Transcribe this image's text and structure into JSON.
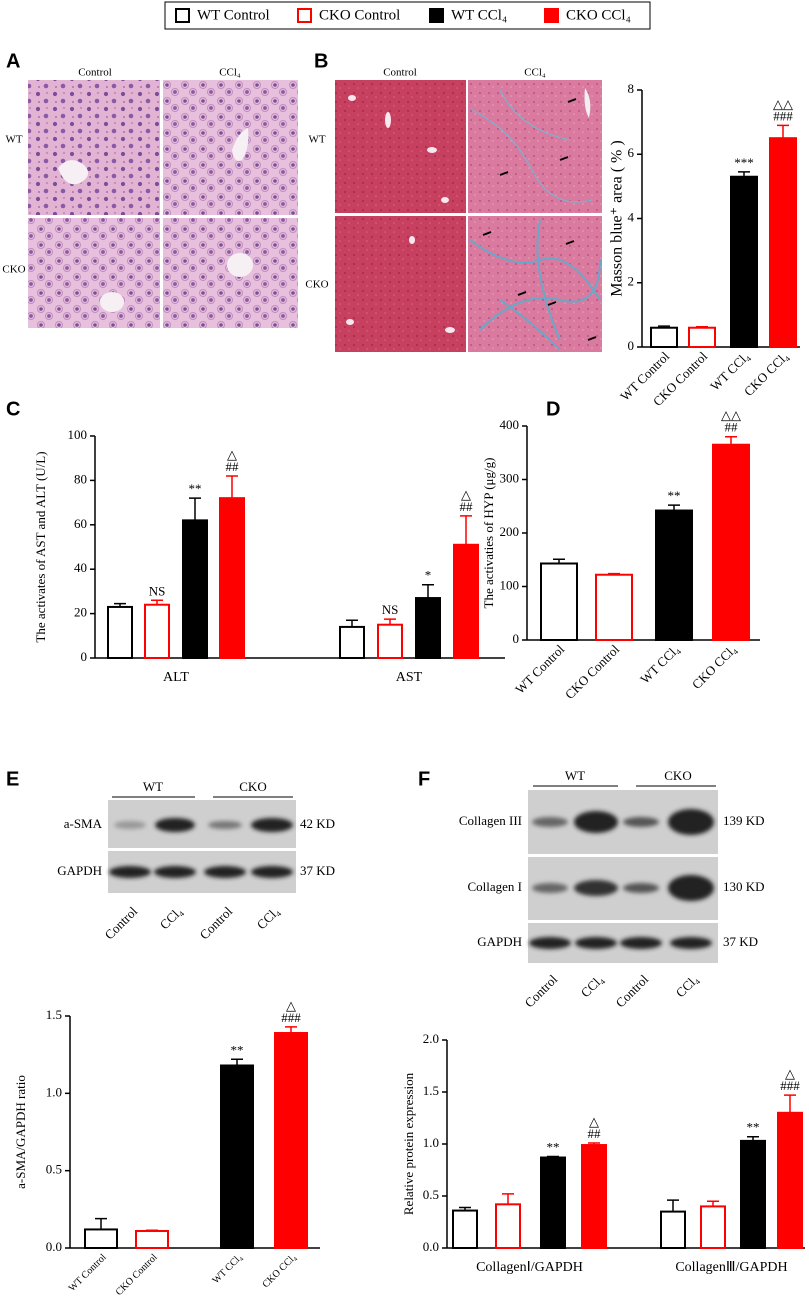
{
  "figure": {
    "panels": [
      "A",
      "B",
      "C",
      "D",
      "E",
      "F"
    ]
  },
  "histology_a": {
    "columns": [
      "Control",
      "CCl₄"
    ],
    "rows": [
      "WT",
      "CKO"
    ]
  },
  "histology_b": {
    "columns": [
      "Control",
      "CCl₄"
    ],
    "rows": [
      "WT",
      "CKO"
    ]
  },
  "blot_e": {
    "groups": [
      "WT",
      "CKO"
    ],
    "proteins": [
      "a-SMA",
      "GAPDH"
    ],
    "sizes": [
      "42 KD",
      "37 KD"
    ],
    "lanes": [
      "Control",
      "CCl₄",
      "Control",
      "CCl₄"
    ]
  },
  "blot_f": {
    "groups": [
      "WT",
      "CKO"
    ],
    "proteins": [
      "Collagen III",
      "Collagen I",
      "GAPDH"
    ],
    "sizes": [
      "139 KD",
      "130 KD",
      "37 KD"
    ],
    "lanes": [
      "Control",
      "CCl₄",
      "Control",
      "CCl₄"
    ]
  },
  "chart_data": [
    {
      "type": "bar",
      "ylabel": "Masson blue⁺ area ( % )",
      "categories": [
        "WT Control",
        "CKO Control",
        "WT CCl₄",
        "CKO CCl₄"
      ],
      "values": [
        0.6,
        0.6,
        5.3,
        6.5
      ],
      "errors": [
        0.05,
        0.03,
        0.15,
        0.4
      ],
      "colors": [
        "#000000",
        "#ff0000",
        "#000000",
        "#ff0000"
      ],
      "filled": [
        false,
        false,
        true,
        true
      ],
      "annotations": [
        [],
        [],
        [
          "***"
        ],
        [
          "△△",
          "###"
        ]
      ],
      "ylim": [
        0,
        8
      ],
      "yticks": [
        0,
        2,
        4,
        6,
        8
      ]
    },
    {
      "type": "grouped_bar",
      "ylabel": "The activates of AST and ALT (U/L)",
      "legend": "top",
      "categories": [
        "ALT",
        "AST"
      ],
      "series": [
        {
          "name": "WT Control",
          "color": "#000000",
          "filled": false,
          "values": [
            23,
            14
          ],
          "errors": [
            1.5,
            3
          ],
          "annotations": [
            [],
            []
          ]
        },
        {
          "name": "CKO Control",
          "color": "#ff0000",
          "filled": false,
          "values": [
            24,
            15
          ],
          "errors": [
            2,
            2.5
          ],
          "annotations": [
            [
              "NS"
            ],
            [
              "NS"
            ]
          ]
        },
        {
          "name": "WT CCl₄",
          "color": "#000000",
          "filled": true,
          "values": [
            62,
            27
          ],
          "errors": [
            10,
            6
          ],
          "annotations": [
            [
              "**"
            ],
            [
              "*"
            ]
          ]
        },
        {
          "name": "CKO CCl₄",
          "color": "#ff0000",
          "filled": true,
          "values": [
            72,
            51
          ],
          "errors": [
            10,
            13
          ],
          "annotations": [
            [
              "△",
              "##"
            ],
            [
              "△",
              "##"
            ]
          ]
        }
      ],
      "ylim": [
        0,
        100
      ],
      "yticks": [
        0,
        20,
        40,
        60,
        80,
        100
      ]
    },
    {
      "type": "bar",
      "ylabel": "The activaties of HYP (μg/g)",
      "categories": [
        "WT Control",
        "CKO Control",
        "WT CCl₄",
        "CKO CCl₄"
      ],
      "values": [
        143,
        122,
        242,
        365
      ],
      "errors": [
        8,
        2,
        10,
        15
      ],
      "colors": [
        "#000000",
        "#ff0000",
        "#000000",
        "#ff0000"
      ],
      "filled": [
        false,
        false,
        true,
        true
      ],
      "annotations": [
        [],
        [],
        [
          "**"
        ],
        [
          "△△",
          "##"
        ]
      ],
      "ylim": [
        0,
        400
      ],
      "yticks": [
        0,
        100,
        200,
        300,
        400
      ]
    },
    {
      "type": "bar",
      "ylabel": "a-SMA/GAPDH ratio",
      "categories": [
        "WT Control",
        "CKO Control",
        "WT CCl₄",
        "CKO CCl₄"
      ],
      "values": [
        0.12,
        0.11,
        1.18,
        1.39
      ],
      "errors": [
        0.07,
        0.005,
        0.04,
        0.04
      ],
      "colors": [
        "#000000",
        "#ff0000",
        "#000000",
        "#ff0000"
      ],
      "filled": [
        false,
        false,
        true,
        true
      ],
      "annotations": [
        [],
        [],
        [
          "**"
        ],
        [
          "△",
          "###"
        ]
      ],
      "ylim": [
        0,
        1.5
      ],
      "yticks": [
        {
          "value": 0,
          "label": "0.0"
        },
        0.5,
        {
          "value": 1,
          "label": "1.0"
        },
        1.5
      ]
    },
    {
      "type": "grouped_bar",
      "ylabel": "Relative protein expression",
      "categories": [
        "CollagenⅠ/GAPDH",
        "CollagenⅢ/GAPDH"
      ],
      "series": [
        {
          "color": "#000000",
          "filled": false,
          "values": [
            0.36,
            0.35
          ],
          "errors": [
            0.03,
            0.11
          ],
          "annotations": [
            [],
            []
          ]
        },
        {
          "color": "#ff0000",
          "filled": false,
          "values": [
            0.42,
            0.4
          ],
          "errors": [
            0.1,
            0.05
          ],
          "annotations": [
            [],
            []
          ]
        },
        {
          "color": "#000000",
          "filled": true,
          "values": [
            0.87,
            1.03
          ],
          "errors": [
            0.01,
            0.04
          ],
          "annotations": [
            [
              "**"
            ],
            [
              "**"
            ]
          ]
        },
        {
          "color": "#ff0000",
          "filled": true,
          "values": [
            0.99,
            1.3
          ],
          "errors": [
            0.02,
            0.17
          ],
          "annotations": [
            [
              "△",
              "##"
            ],
            [
              "△",
              "###"
            ]
          ]
        }
      ],
      "ylim": [
        0,
        2
      ],
      "yticks": [
        {
          "value": 0,
          "label": "0.0"
        },
        0.5,
        {
          "value": 1,
          "label": "1.0"
        },
        1.5,
        {
          "value": 2,
          "label": "2.0"
        }
      ]
    }
  ]
}
